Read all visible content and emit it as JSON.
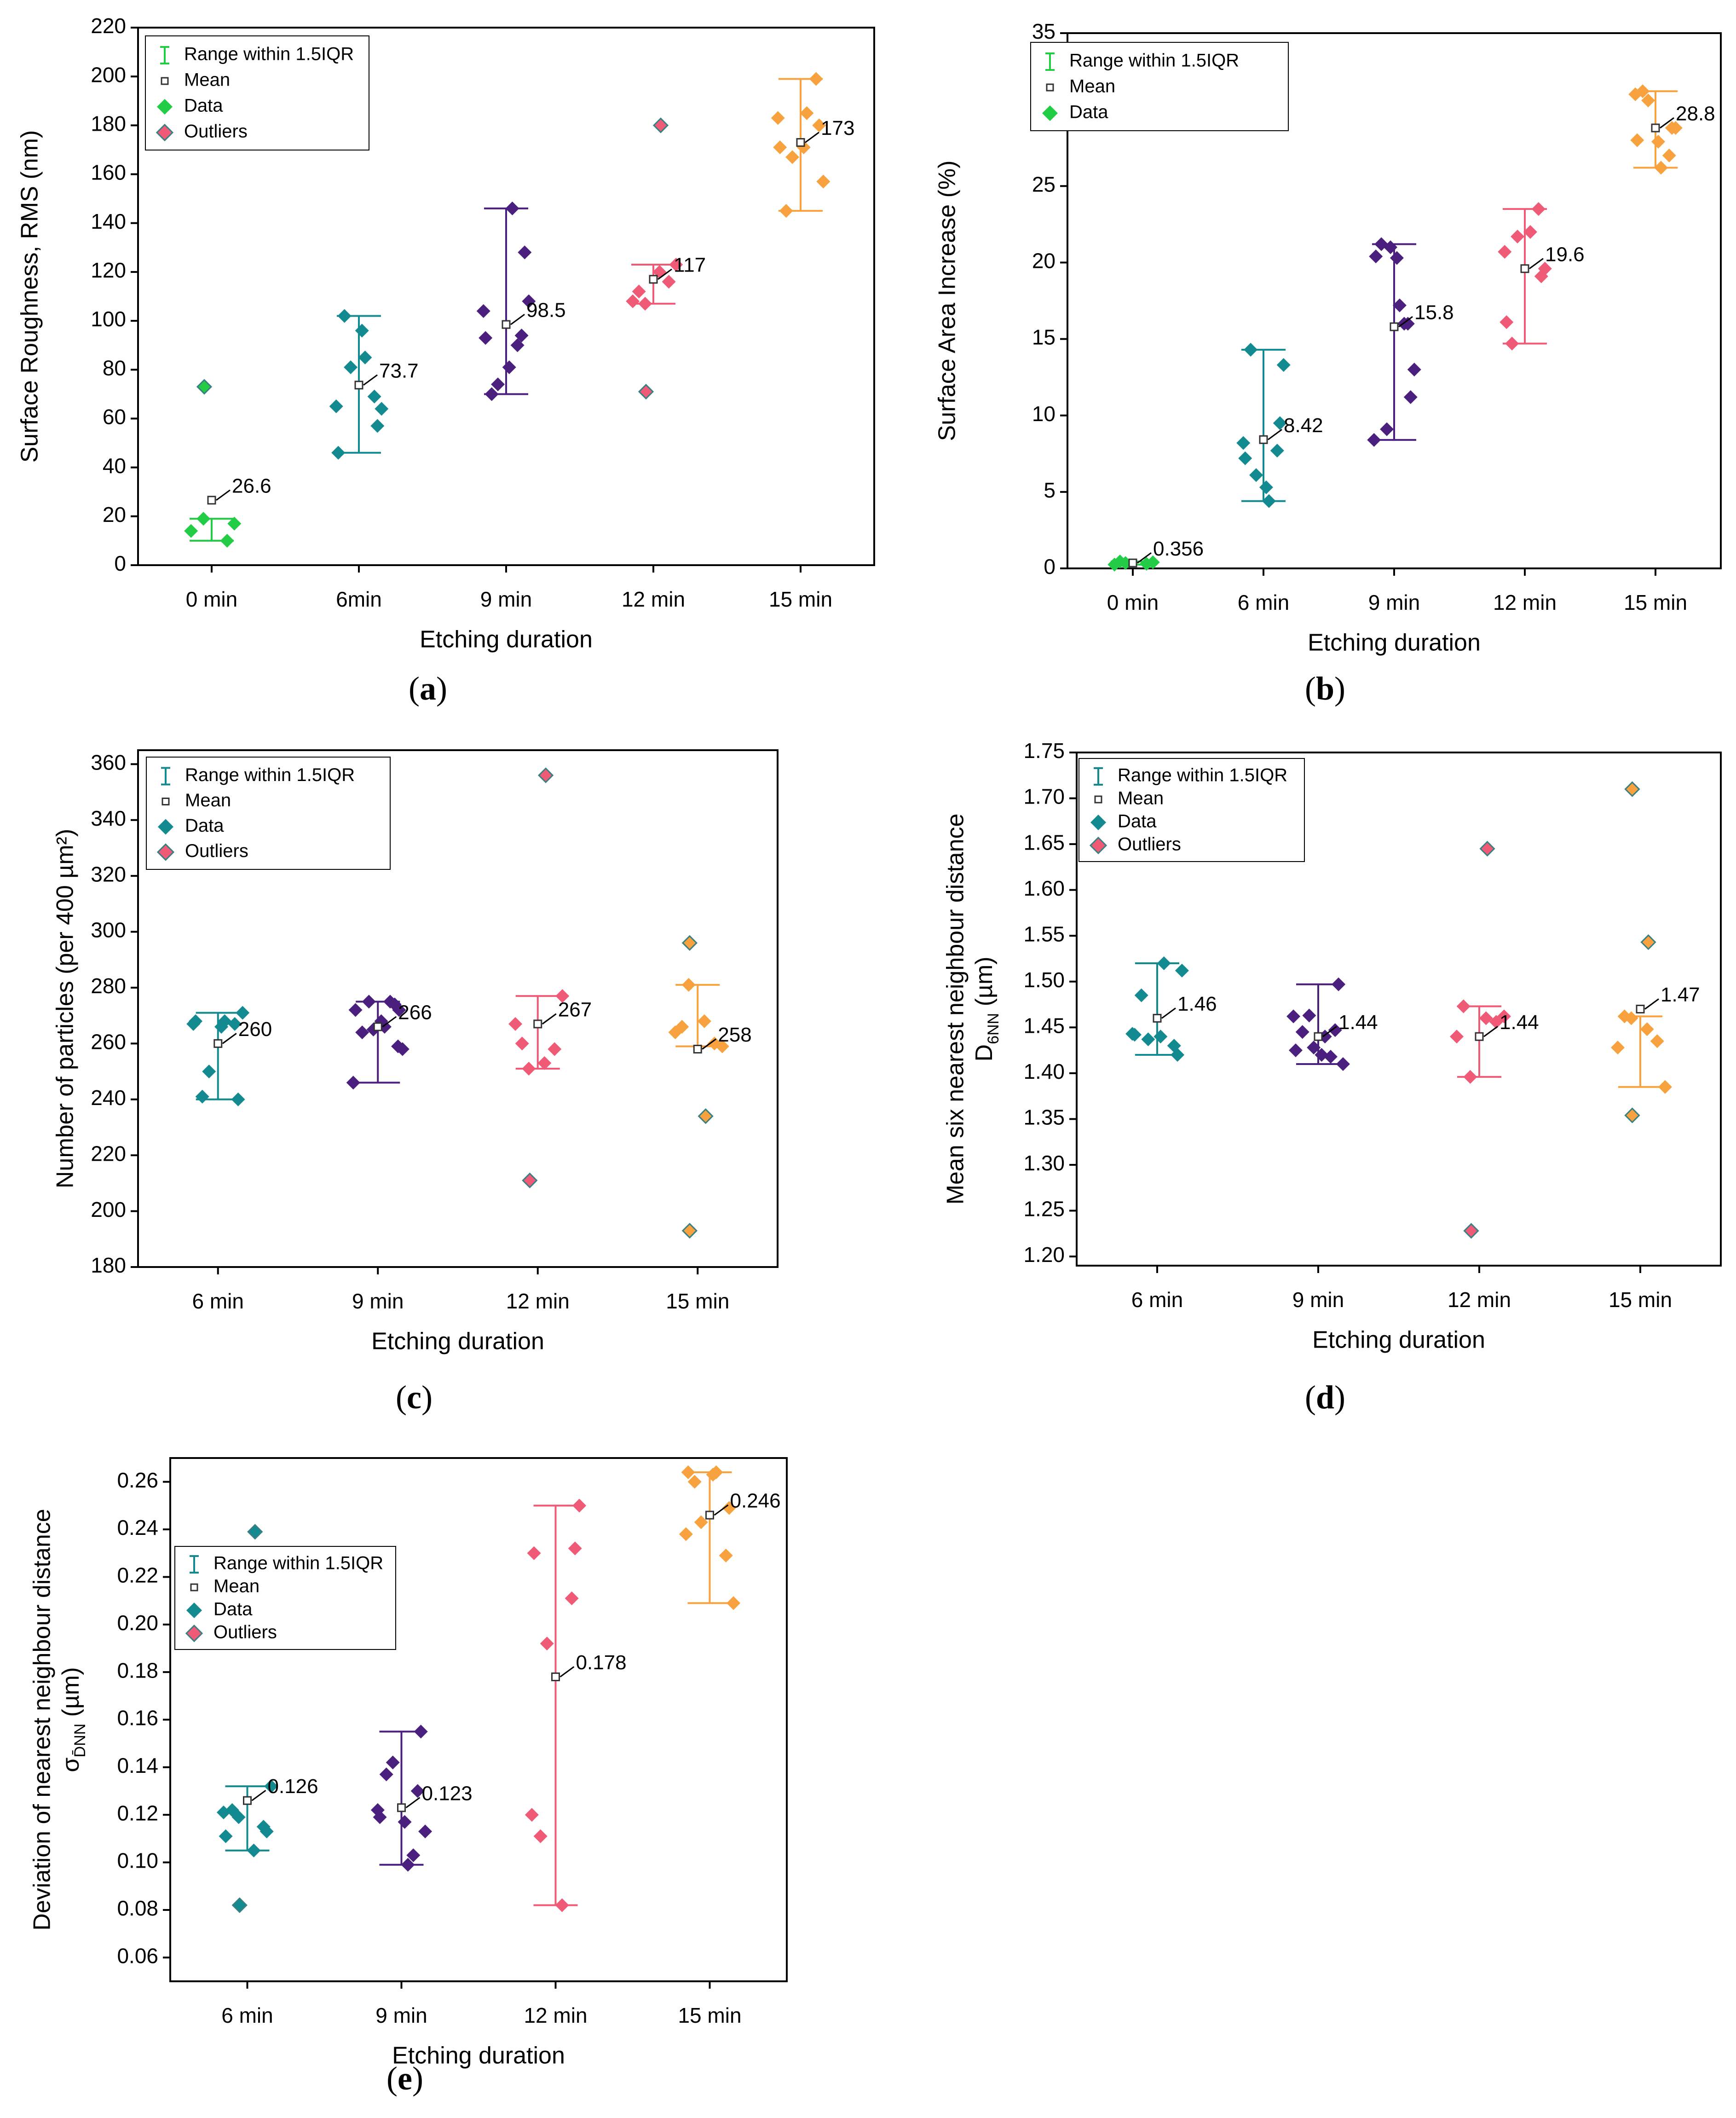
{
  "colors": {
    "c0": "#22cc44",
    "c6": "#138a8f",
    "c9": "#4b1f7e",
    "c12": "#ef5a77",
    "c15": "#f7a23e",
    "axis": "#000000"
  },
  "legend": {
    "range": "Range within 1.5IQR",
    "mean": "Mean",
    "data": "Data",
    "outliers": "Outliers"
  },
  "chart_data": [
    {
      "id": "a",
      "panel_label": "a",
      "type": "scatter",
      "xlabel": "Etching duration",
      "ylabel": "Surface Roughness, RMS (nm)",
      "ylim": [
        0,
        220
      ],
      "yticks": [
        0,
        20,
        40,
        60,
        80,
        100,
        120,
        140,
        160,
        180,
        200,
        220
      ],
      "legend_items": [
        "range",
        "mean",
        "data",
        "outliers"
      ],
      "groups": [
        {
          "label": "0 min",
          "color": "c0",
          "points": [
            14,
            10,
            19,
            17
          ],
          "outliers": [
            73
          ],
          "whisker": [
            10,
            19
          ],
          "mean": 26.6,
          "mean_label": "26.6"
        },
        {
          "label": "6min",
          "color": "c6",
          "points": [
            46,
            69,
            81,
            64,
            102,
            85,
            57,
            65,
            96
          ],
          "outliers": [],
          "whisker": [
            46,
            102
          ],
          "mean": 73.7,
          "mean_label": "73.7"
        },
        {
          "label": "9 min",
          "color": "c9",
          "points": [
            93,
            94,
            74,
            108,
            70,
            146,
            128,
            104,
            81,
            90
          ],
          "outliers": [],
          "whisker": [
            70,
            146
          ],
          "mean": 98.5,
          "mean_label": "98.5"
        },
        {
          "label": "12 min",
          "color": "c12",
          "points": [
            108,
            116,
            107,
            123,
            112,
            120
          ],
          "outliers": [
            71,
            180
          ],
          "whisker": [
            107,
            123
          ],
          "mean": 117,
          "mean_label": "117"
        },
        {
          "label": "15 min",
          "color": "c15",
          "points": [
            171,
            199,
            167,
            157,
            145,
            185,
            180,
            183,
            171
          ],
          "outliers": [],
          "whisker": [
            145,
            199
          ],
          "mean": 173,
          "mean_label": "173"
        }
      ]
    },
    {
      "id": "b",
      "panel_label": "b",
      "type": "scatter",
      "xlabel": "Etching duration",
      "ylabel": "Surface Area Increase (%)",
      "ylim": [
        0,
        35
      ],
      "yticks": [
        0,
        5,
        10,
        15,
        20,
        25,
        30,
        35
      ],
      "legend_items": [
        "range",
        "mean",
        "data"
      ],
      "groups": [
        {
          "label": "0 min",
          "color": "c0",
          "points": [
            0.25,
            0.3,
            0.35,
            0.4,
            0.45
          ],
          "outliers": [],
          "whisker": [
            0.25,
            0.45
          ],
          "mean": 0.356,
          "mean_label": "0.356"
        },
        {
          "label": "6 min",
          "color": "c6",
          "points": [
            7.2,
            7.7,
            6.1,
            13.3,
            14.3,
            4.4,
            9.5,
            8.2,
            5.3
          ],
          "outliers": [],
          "whisker": [
            4.4,
            14.3
          ],
          "mean": 8.42,
          "mean_label": "8.42"
        },
        {
          "label": "9 min",
          "color": "c9",
          "points": [
            20.4,
            16,
            9.1,
            13,
            21.2,
            17.2,
            11.2,
            8.4,
            20.3,
            16,
            21
          ],
          "outliers": [],
          "whisker": [
            8.4,
            21.2
          ],
          "mean": 15.8,
          "mean_label": "15.8"
        },
        {
          "label": "12 min",
          "color": "c12",
          "points": [
            16.1,
            23.5,
            21.7,
            19.6,
            14.7,
            22,
            19.1,
            20.7
          ],
          "outliers": [],
          "whisker": [
            14.7,
            23.5
          ],
          "mean": 19.6,
          "mean_label": "19.6"
        },
        {
          "label": "15 min",
          "color": "c15",
          "points": [
            28,
            27,
            30.6,
            28.8,
            31.2,
            26.2,
            28.8,
            31,
            27.9
          ],
          "outliers": [],
          "whisker": [
            26.2,
            31.2
          ],
          "mean": 28.8,
          "mean_label": "28.8"
        }
      ]
    },
    {
      "id": "c",
      "panel_label": "c",
      "type": "scatter",
      "xlabel": "Etching duration",
      "ylabel": "Number of particles (per 400 µm²)",
      "ylim": [
        180,
        365
      ],
      "yticks": [
        180,
        200,
        220,
        240,
        260,
        280,
        300,
        320,
        340,
        360
      ],
      "legend_items": [
        "range",
        "mean",
        "data",
        "outliers"
      ],
      "groups": [
        {
          "label": "6 min",
          "color": "c6",
          "points": [
            268,
            267,
            250,
            271,
            241,
            268,
            240,
            267,
            266
          ],
          "outliers": [],
          "whisker": [
            240,
            271
          ],
          "mean": 260,
          "mean_label": "260"
        },
        {
          "label": "9 min",
          "color": "c9",
          "points": [
            272,
            274,
            275,
            258,
            264,
            266,
            259,
            246,
            268,
            275,
            265,
            272
          ],
          "outliers": [],
          "whisker": [
            246,
            275
          ],
          "mean": 266,
          "mean_label": "266"
        },
        {
          "label": "12 min",
          "color": "c12",
          "points": [
            267,
            258,
            251,
            277,
            260,
            253
          ],
          "outliers": [
            211,
            356
          ],
          "whisker": [
            251,
            277
          ],
          "mean": 267,
          "mean_label": "267"
        },
        {
          "label": "15 min",
          "color": "c15",
          "points": [
            264,
            260,
            281,
            259,
            266,
            268
          ],
          "outliers": [
            193,
            234,
            296
          ],
          "whisker": [
            259,
            281
          ],
          "mean": 258,
          "mean_label": "258"
        }
      ]
    },
    {
      "id": "d",
      "panel_label": "d",
      "type": "scatter",
      "xlabel": "Etching duration",
      "ylabel": "Mean six nearest neighbour distance",
      "ylabel2": "D",
      "ylabel2_sub": "6NN",
      "ylabel2_unit": " (µm)",
      "ylim": [
        1.19,
        1.75
      ],
      "yticks": [
        1.2,
        1.25,
        1.3,
        1.35,
        1.4,
        1.45,
        1.5,
        1.55,
        1.6,
        1.65,
        1.7,
        1.75
      ],
      "legend_items": [
        "range",
        "mean",
        "data",
        "outliers"
      ],
      "groups": [
        {
          "label": "6 min",
          "color": "c6",
          "points": [
            1.442,
            1.43,
            1.437,
            1.512,
            1.485,
            1.52,
            1.42,
            1.443,
            1.44
          ],
          "outliers": [],
          "whisker": [
            1.42,
            1.52
          ],
          "mean": 1.46,
          "mean_label": "1.46"
        },
        {
          "label": "9 min",
          "color": "c9",
          "points": [
            1.425,
            1.447,
            1.463,
            1.41,
            1.445,
            1.44,
            1.497,
            1.462,
            1.42,
            1.418,
            1.428
          ],
          "outliers": [],
          "whisker": [
            1.41,
            1.497
          ],
          "mean": 1.44,
          "mean_label": "1.44"
        },
        {
          "label": "12 min",
          "color": "c12",
          "points": [
            1.44,
            1.456,
            1.396,
            1.462,
            1.473,
            1.46
          ],
          "outliers": [
            1.228,
            1.645
          ],
          "whisker": [
            1.396,
            1.473
          ],
          "mean": 1.44,
          "mean_label": "1.44"
        },
        {
          "label": "15 min",
          "color": "c15",
          "points": [
            1.428,
            1.435,
            1.46,
            1.385,
            1.462,
            1.448
          ],
          "outliers": [
            1.354,
            1.543,
            1.71
          ],
          "whisker": [
            1.385,
            1.462
          ],
          "mean": 1.47,
          "mean_label": "1.47"
        }
      ]
    },
    {
      "id": "e",
      "panel_label": "e",
      "type": "scatter",
      "xlabel": "Etching duration",
      "ylabel": "Deviation of nearest neighbour distance",
      "ylabel2": "σ",
      "ylabel2_sub": "D̄NN",
      "ylabel2_unit": " (µm)",
      "ylim": [
        0.05,
        0.27
      ],
      "yticks": [
        0.06,
        0.08,
        0.1,
        0.12,
        0.14,
        0.16,
        0.18,
        0.2,
        0.22,
        0.24,
        0.26
      ],
      "legend_items": [
        "range",
        "mean",
        "data",
        "outliers"
      ],
      "groups": [
        {
          "label": "6 min",
          "color": "c6",
          "points": [
            0.111,
            0.115,
            0.119,
            0.132,
            0.122,
            0.105,
            0.113,
            0.121
          ],
          "outliers": [
            0.082,
            0.239
          ],
          "whisker": [
            0.105,
            0.132
          ],
          "mean": 0.126,
          "mean_label": "0.126"
        },
        {
          "label": "9 min",
          "color": "c9",
          "points": [
            0.119,
            0.13,
            0.142,
            0.113,
            0.137,
            0.099,
            0.155,
            0.122,
            0.117,
            0.103
          ],
          "outliers": [],
          "whisker": [
            0.099,
            0.155
          ],
          "mean": 0.123,
          "mean_label": "0.123"
        },
        {
          "label": "12 min",
          "color": "c12",
          "points": [
            0.23,
            0.211,
            0.192,
            0.25,
            0.111,
            0.082,
            0.232,
            0.12
          ],
          "outliers": [],
          "whisker": [
            0.082,
            0.25
          ],
          "mean": 0.178,
          "mean_label": "0.178"
        },
        {
          "label": "15 min",
          "color": "c15",
          "points": [
            0.264,
            0.229,
            0.243,
            0.209,
            0.26,
            0.264,
            0.249,
            0.238,
            0.263
          ],
          "outliers": [],
          "whisker": [
            0.209,
            0.264
          ],
          "mean": 0.246,
          "mean_label": "0.246"
        }
      ]
    }
  ]
}
